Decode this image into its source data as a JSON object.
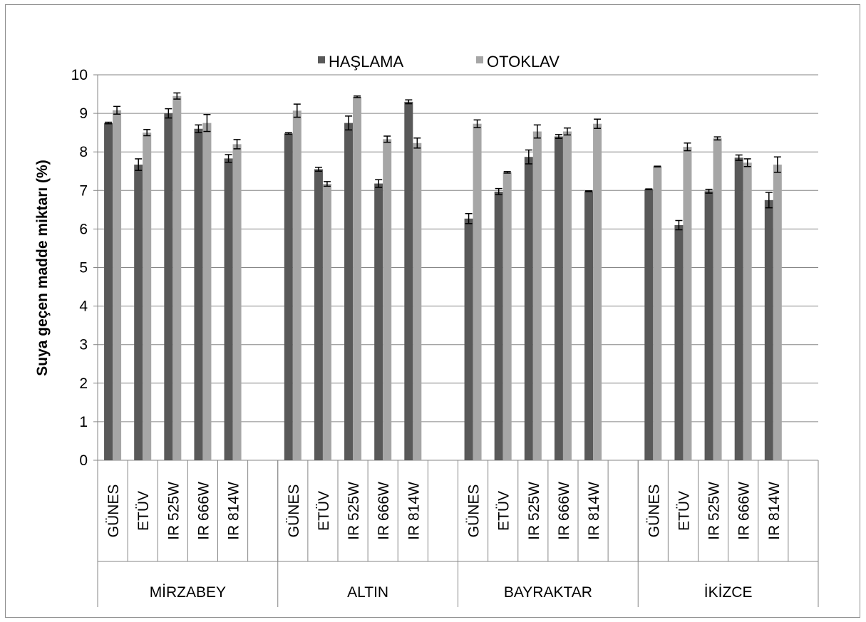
{
  "chart_data": {
    "type": "bar",
    "ylabel": "Suya geçen madde miktarı (%)",
    "ylim": [
      0,
      10
    ],
    "yticks": [
      "0",
      "1",
      "2",
      "3",
      "4",
      "5",
      "6",
      "7",
      "8",
      "9",
      "10"
    ],
    "grid": true,
    "legend_position": "top",
    "groups": [
      "MİRZABEY",
      "ALTIN",
      "BAYRAKTAR",
      "İKİZCE"
    ],
    "categories": [
      "GÜNES",
      "ETÜV",
      "IR 525W",
      "IR 666W",
      "IR 814W"
    ],
    "series": [
      {
        "name": "HAŞLAMA",
        "color": "#595959",
        "values": [
          [
            8.75,
            7.67,
            9.0,
            8.6,
            7.83
          ],
          [
            8.48,
            7.55,
            8.75,
            7.18,
            9.3
          ],
          [
            6.27,
            6.97,
            7.87,
            8.4,
            6.98
          ],
          [
            7.03,
            6.1,
            6.98,
            7.85,
            6.75
          ]
        ],
        "errors": [
          [
            0.02,
            0.15,
            0.12,
            0.1,
            0.1
          ],
          [
            0.02,
            0.05,
            0.18,
            0.1,
            0.05
          ],
          [
            0.13,
            0.08,
            0.18,
            0.05,
            0.01
          ],
          [
            0.01,
            0.12,
            0.05,
            0.07,
            0.2
          ]
        ]
      },
      {
        "name": "OTOKLAV",
        "color": "#a6a6a6",
        "values": [
          [
            9.08,
            8.5,
            9.45,
            8.75,
            8.2
          ],
          [
            9.07,
            7.17,
            9.43,
            8.33,
            8.23
          ],
          [
            8.73,
            7.47,
            8.53,
            8.53,
            8.73
          ],
          [
            7.62,
            8.13,
            8.35,
            7.72,
            7.67
          ]
        ],
        "errors": [
          [
            0.1,
            0.08,
            0.08,
            0.22,
            0.12
          ],
          [
            0.17,
            0.06,
            0.02,
            0.08,
            0.13
          ],
          [
            0.1,
            0.02,
            0.17,
            0.09,
            0.12
          ],
          [
            0.01,
            0.1,
            0.04,
            0.1,
            0.2
          ]
        ]
      }
    ]
  }
}
